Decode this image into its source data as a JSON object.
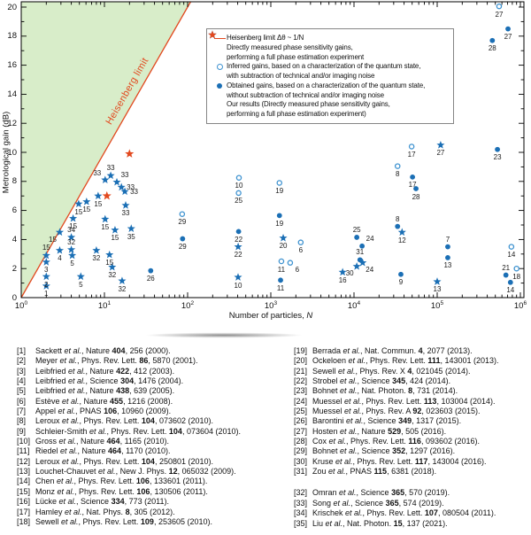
{
  "chart_data": {
    "type": "scatter",
    "title": "",
    "xlabel": {
      "text": "Number of particles, ",
      "var": "N"
    },
    "ylabel": "Metrological gain (dB)",
    "xscale": "log",
    "xlim": [
      1,
      1000000
    ],
    "ylim": [
      0,
      20
    ],
    "xtick_base": "10",
    "xticks": [
      0,
      1,
      2,
      3,
      4,
      5,
      6
    ],
    "yticks": [
      0,
      2,
      4,
      6,
      8,
      10,
      12,
      14,
      16,
      18,
      20
    ],
    "grid": false,
    "colors": {
      "blue": "#1b6fb5",
      "open_circle_stroke": "#3d92d0",
      "orange": "#e2491f",
      "region_green": "#d8edc9",
      "text": "#111111"
    },
    "heisenberg_limit": {
      "label": "Heisenberg limit",
      "line": {
        "x1": 1,
        "y1": 0,
        "x2": 100,
        "y2": 20
      },
      "color": "#e2491f",
      "region_color": "#d8edc9"
    },
    "legend": {
      "position": "upper-center-right",
      "items": [
        {
          "marker": "line",
          "color": "#e2491f",
          "lines": [
            "Heisenberg limit Δθ ~ 1/N"
          ]
        },
        {
          "marker": "star",
          "color": "#1b6fb5",
          "lines": [
            "Directly measured phase sensitivity gains,",
            "performing a full phase estimation experiment"
          ]
        },
        {
          "marker": "circle-open",
          "color": "#3d92d0",
          "lines": [
            "Inferred gains, based on a characterization of the quantum state,",
            "with subtraction of technical and/or imaging noise"
          ]
        },
        {
          "marker": "circle-filled",
          "color": "#1b6fb5",
          "lines": [
            "Obtained gains, based on a characterization of the quantum state,",
            "without subtraction of technical and/or imaging noise"
          ]
        },
        {
          "marker": "star",
          "color": "#e2491f",
          "lines": [
            "Our results (Directly measured phase sensitivity gains,",
            "performing a full phase estimation experiment)"
          ]
        }
      ]
    },
    "marker_types": {
      "s": "blue-star-directly-measured",
      "o": "open-circle-inferred",
      "f": "filled-circle-obtained",
      "os": "orange-star-our-results"
    },
    "points": [
      {
        "n": 2,
        "db": 0.8,
        "m": "s",
        "ref": "1",
        "lp": "b"
      },
      {
        "n": 2,
        "db": 1.45,
        "m": "s",
        "ref": "2",
        "lp": "b"
      },
      {
        "n": 2,
        "db": 2.45,
        "m": "s",
        "ref": "3",
        "lp": "b"
      },
      {
        "n": 2,
        "db": 2.9,
        "m": "s",
        "ref": "15",
        "lp": "a"
      },
      {
        "n": 2.9,
        "db": 3.25,
        "m": "s",
        "ref": "4",
        "lp": "b"
      },
      {
        "n": 2.9,
        "db": 4.5,
        "m": "s",
        "ref": "15",
        "lp": "bl"
      },
      {
        "n": 4,
        "db": 4.15,
        "m": "s",
        "ref": "34",
        "lp": "a"
      },
      {
        "n": 4,
        "db": 3.3,
        "m": "s",
        "ref": "32",
        "lp": "a"
      },
      {
        "n": 4.1,
        "db": 2.9,
        "m": "s",
        "ref": "5",
        "lp": "b"
      },
      {
        "n": 5.2,
        "db": 1.45,
        "m": "s",
        "ref": "5",
        "lp": "b"
      },
      {
        "n": 4.2,
        "db": 5.45,
        "m": "s",
        "ref": "15",
        "lp": "b"
      },
      {
        "n": 4.9,
        "db": 6.45,
        "m": "s",
        "ref": "15",
        "lp": "b"
      },
      {
        "n": 6.1,
        "db": 6.6,
        "m": "s",
        "ref": "15",
        "lp": "b"
      },
      {
        "n": 8.4,
        "db": 7.0,
        "m": "s",
        "ref": "15",
        "lp": "b"
      },
      {
        "n": 10.2,
        "db": 5.4,
        "m": "s",
        "ref": "15",
        "lp": "b"
      },
      {
        "n": 13.4,
        "db": 4.65,
        "m": "s",
        "ref": "15",
        "lp": "b"
      },
      {
        "n": 11.5,
        "db": 2.95,
        "m": "s",
        "ref": "15",
        "lp": "b"
      },
      {
        "n": 21,
        "db": 4.75,
        "m": "s",
        "ref": "35",
        "lp": "b"
      },
      {
        "n": 8,
        "db": 3.25,
        "m": "s",
        "ref": "32",
        "lp": "b"
      },
      {
        "n": 12.4,
        "db": 2.1,
        "m": "s",
        "ref": "32",
        "lp": "b"
      },
      {
        "n": 16.3,
        "db": 1.15,
        "m": "s",
        "ref": "32",
        "lp": "b"
      },
      {
        "n": 10.2,
        "db": 8.1,
        "m": "s",
        "ref": "33",
        "lp": "al"
      },
      {
        "n": 11.9,
        "db": 8.4,
        "m": "s",
        "ref": "33",
        "lp": "a"
      },
      {
        "n": 14.1,
        "db": 7.95,
        "m": "s",
        "ref": "33",
        "lp": "ar"
      },
      {
        "n": 16,
        "db": 7.6,
        "m": "s",
        "ref": "33",
        "lp": "r"
      },
      {
        "n": 17.6,
        "db": 7.3,
        "m": "s",
        "ref": "33",
        "lp": "r"
      },
      {
        "n": 18,
        "db": 6.35,
        "m": "s",
        "ref": "33",
        "lp": "b"
      },
      {
        "n": 20,
        "db": 9.9,
        "m": "os",
        "ref": "",
        "lp": "b"
      },
      {
        "n": 10.7,
        "db": 7.0,
        "m": "os",
        "ref": "",
        "lp": "b"
      },
      {
        "n": 36,
        "db": 1.85,
        "m": "f",
        "ref": "26",
        "lp": "b"
      },
      {
        "n": 86,
        "db": 5.75,
        "m": "o",
        "ref": "29",
        "lp": "b"
      },
      {
        "n": 87,
        "db": 4.05,
        "m": "f",
        "ref": "29",
        "lp": "b"
      },
      {
        "n": 414,
        "db": 8.25,
        "m": "o",
        "ref": "10",
        "lp": "b"
      },
      {
        "n": 410,
        "db": 7.2,
        "m": "o",
        "ref": "25",
        "lp": "b"
      },
      {
        "n": 410,
        "db": 4.55,
        "m": "f",
        "ref": "22",
        "lp": "b"
      },
      {
        "n": 405,
        "db": 3.5,
        "m": "s",
        "ref": "22",
        "lp": "b"
      },
      {
        "n": 404,
        "db": 1.4,
        "m": "s",
        "ref": "10",
        "lp": "b"
      },
      {
        "n": 1270,
        "db": 7.9,
        "m": "o",
        "ref": "19",
        "lp": "b"
      },
      {
        "n": 1270,
        "db": 5.65,
        "m": "f",
        "ref": "19",
        "lp": "b"
      },
      {
        "n": 1410,
        "db": 4.1,
        "m": "s",
        "ref": "20",
        "lp": "b"
      },
      {
        "n": 2290,
        "db": 3.8,
        "m": "o",
        "ref": "6",
        "lp": "b"
      },
      {
        "n": 1340,
        "db": 2.5,
        "m": "o",
        "ref": "11",
        "lp": "b"
      },
      {
        "n": 1710,
        "db": 2.4,
        "m": "o",
        "ref": "6",
        "lp": "br"
      },
      {
        "n": 1310,
        "db": 1.2,
        "m": "f",
        "ref": "11",
        "lp": "b"
      },
      {
        "n": 7300,
        "db": 1.75,
        "m": "s",
        "ref": "16",
        "lp": "b"
      },
      {
        "n": 10800,
        "db": 4.15,
        "m": "f",
        "ref": "25",
        "lp": "a"
      },
      {
        "n": 12500,
        "db": 3.55,
        "m": "f",
        "ref": "24",
        "lp": "ar"
      },
      {
        "n": 11800,
        "db": 2.6,
        "m": "f",
        "ref": "31",
        "lp": "a"
      },
      {
        "n": 12700,
        "db": 2.4,
        "m": "s",
        "ref": "24",
        "lp": "br"
      },
      {
        "n": 10800,
        "db": 2.15,
        "m": "s",
        "ref": "30",
        "lp": "bl"
      },
      {
        "n": 33400,
        "db": 9.05,
        "m": "o",
        "ref": "8",
        "lp": "b"
      },
      {
        "n": 33400,
        "db": 4.9,
        "m": "f",
        "ref": "8",
        "lp": "a"
      },
      {
        "n": 37800,
        "db": 4.5,
        "m": "s",
        "ref": "12",
        "lp": "b"
      },
      {
        "n": 36600,
        "db": 1.6,
        "m": "f",
        "ref": "9",
        "lp": "b"
      },
      {
        "n": 49300,
        "db": 10.4,
        "m": "o",
        "ref": "17",
        "lp": "b"
      },
      {
        "n": 50500,
        "db": 8.3,
        "m": "f",
        "ref": "17",
        "lp": "b"
      },
      {
        "n": 55600,
        "db": 7.5,
        "m": "f",
        "ref": "28",
        "lp": "b"
      },
      {
        "n": 110000,
        "db": 10.5,
        "m": "s",
        "ref": "27",
        "lp": "b"
      },
      {
        "n": 134000,
        "db": 3.5,
        "m": "f",
        "ref": "7",
        "lp": "a"
      },
      {
        "n": 134000,
        "db": 2.75,
        "m": "f",
        "ref": "13",
        "lp": "b"
      },
      {
        "n": 100000,
        "db": 1.1,
        "m": "s",
        "ref": "13",
        "lp": "b"
      },
      {
        "n": 530000,
        "db": 10.2,
        "m": "f",
        "ref": "23",
        "lp": "b"
      },
      {
        "n": 555000,
        "db": 20.05,
        "m": "o",
        "ref": "27",
        "lp": "b"
      },
      {
        "n": 710000,
        "db": 18.5,
        "m": "f",
        "ref": "27",
        "lp": "b"
      },
      {
        "n": 460000,
        "db": 17.7,
        "m": "f",
        "ref": "28",
        "lp": "b"
      },
      {
        "n": 780000,
        "db": 3.5,
        "m": "o",
        "ref": "14",
        "lp": "b"
      },
      {
        "n": 670000,
        "db": 1.55,
        "m": "f",
        "ref": "21",
        "lp": "a"
      },
      {
        "n": 760000,
        "db": 1.05,
        "m": "f",
        "ref": "14",
        "lp": "b"
      },
      {
        "n": 900000,
        "db": 2.0,
        "m": "o",
        "ref": "18",
        "lp": "b"
      }
    ]
  },
  "references": {
    "etal": "et al.",
    "left": [
      {
        "no": "[1]",
        "a": "Sackett",
        "j": "Nature",
        "v": "404",
        "p": "256 (2000)."
      },
      {
        "no": "[2]",
        "a": "Meyer",
        "j": "Phys. Rev. Lett.",
        "v": "86",
        "p": "5870 (2001)."
      },
      {
        "no": "[3]",
        "a": "Leibfried",
        "j": "Nature",
        "v": "422",
        "p": "412 (2003)."
      },
      {
        "no": "[4]",
        "a": "Leibfried",
        "j": "Science",
        "v": "304",
        "p": "1476 (2004)."
      },
      {
        "no": "[5]",
        "a": "Leibfried",
        "j": "Nature",
        "v": "438",
        "p": "639 (2005)."
      },
      {
        "no": "[6]",
        "a": "Estève",
        "j": "Nature",
        "v": "455",
        "p": "1216 (2008)."
      },
      {
        "no": "[7]",
        "a": "Appel",
        "j": "PNAS",
        "v": "106",
        "p": "10960 (2009)."
      },
      {
        "no": "[8]",
        "a": "Leroux",
        "j": "Phys. Rev. Lett.",
        "v": "104",
        "p": "073602 (2010)."
      },
      {
        "no": "[9]",
        "a": "Schleier-Smith",
        "j": "Phys. Rev. Lett.",
        "v": "104",
        "p": "073604 (2010)."
      },
      {
        "no": "[10]",
        "a": "Gross",
        "j": "Nature",
        "v": "464",
        "p": "1165 (2010)."
      },
      {
        "no": "[11]",
        "a": "Riedel",
        "j": "Nature",
        "v": "464",
        "p": "1170 (2010)."
      },
      {
        "no": "[12]",
        "a": "Leroux",
        "j": "Phys. Rev. Lett.",
        "v": "104",
        "p": "250801 (2010)."
      },
      {
        "no": "[13]",
        "a": "Louchet-Chauvet",
        "j": "New J. Phys.",
        "v": "12",
        "p": "065032 (2009)."
      },
      {
        "no": "[14]",
        "a": "Chen",
        "j": "Phys. Rev. Lett.",
        "v": "106",
        "p": "133601 (2011)."
      },
      {
        "no": "[15]",
        "a": "Monz",
        "j": "Phys. Rev. Lett.",
        "v": "106",
        "p": "130506 (2011)."
      },
      {
        "no": "[16]",
        "a": "Lücke",
        "j": "Science",
        "v": "334",
        "p": "773 (2011)."
      },
      {
        "no": "[17]",
        "a": "Hamley",
        "j": "Nat. Phys.",
        "v": "8",
        "p": "305 (2012)."
      },
      {
        "no": "[18]",
        "a": "Sewell",
        "j": "Phys. Rev. Lett.",
        "v": "109",
        "p": "253605 (2010)."
      }
    ],
    "right": [
      {
        "no": "[19]",
        "a": "Berrada",
        "j": "Nat. Commun.",
        "v": "4",
        "p": "2077 (2013)."
      },
      {
        "no": "[20]",
        "a": "Ockeloen",
        "j": "Phys. Rev. Lett.",
        "v": "111",
        "p": "143001 (2013)."
      },
      {
        "no": "[21]",
        "a": "Sewell",
        "j": "Phys. Rev. X",
        "v": "4",
        "p": "021045 (2014)."
      },
      {
        "no": "[22]",
        "a": "Strobel",
        "j": "Science",
        "v": "345",
        "p": "424 (2014)."
      },
      {
        "no": "[23]",
        "a": "Bohnet",
        "j": "Nat. Photon.",
        "v": "8",
        "p": "731 (2014)."
      },
      {
        "no": "[24]",
        "a": "Muessel",
        "j": "Phys. Rev. Lett.",
        "v": "113",
        "p": "103004 (2014)."
      },
      {
        "no": "[25]",
        "a": "Muessel",
        "j": "Phys. Rev. A",
        "v": "92",
        "p": "023603 (2015)."
      },
      {
        "no": "[26]",
        "a": "Barontini",
        "j": "Science",
        "v": "349",
        "p": "1317 (2015)."
      },
      {
        "no": "[27]",
        "a": "Hosten",
        "j": "Nature",
        "v": "529",
        "p": "505 (2016)."
      },
      {
        "no": "[28]",
        "a": "Cox",
        "j": "Phys. Rev. Lett.",
        "v": "116",
        "p": "093602 (2016)."
      },
      {
        "no": "[29]",
        "a": "Bohnet",
        "j": "Science",
        "v": "352",
        "p": "1297 (2016)."
      },
      {
        "no": "[30]",
        "a": "Kruse",
        "j": "Phys. Rev. Lett.",
        "v": "117",
        "p": "143004 (2016)."
      },
      {
        "no": "[31]",
        "a": "Zou",
        "j": "PNAS",
        "v": "115",
        "p": "6381 (2018)."
      }
    ],
    "right2": [
      {
        "no": "[32]",
        "a": "Omran",
        "j": "Science",
        "v": "365",
        "p": "570 (2019)."
      },
      {
        "no": "[33]",
        "a": "Song",
        "j": "Science",
        "v": "365",
        "p": "574 (2019)."
      },
      {
        "no": "[34]",
        "a": "Krischek",
        "j": "Phys. Rev. Lett.",
        "v": "107",
        "p": "080504 (2011)."
      },
      {
        "no": "[35]",
        "a": "Liu",
        "j": "Nat. Photon.",
        "v": "15",
        "p": "137 (2021)."
      }
    ]
  }
}
